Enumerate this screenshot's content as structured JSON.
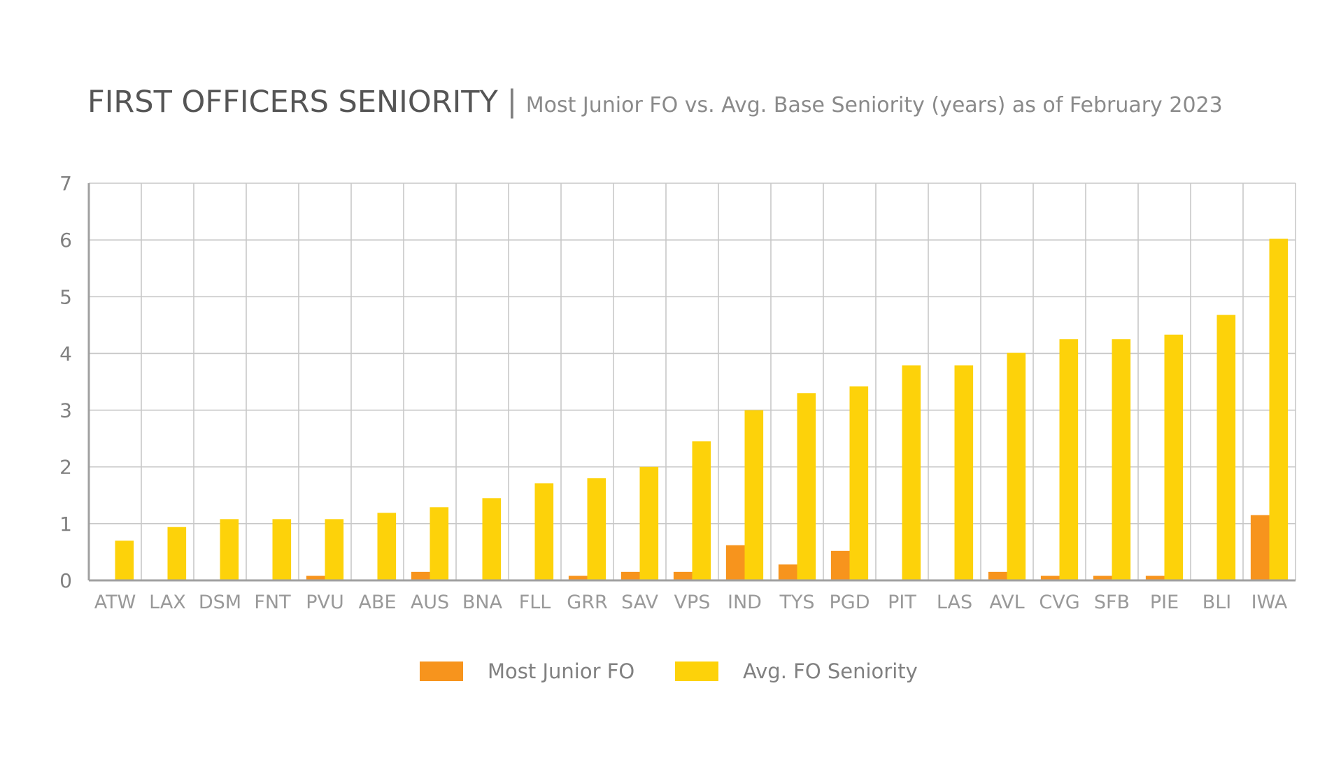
{
  "chart_data": {
    "type": "bar",
    "title": "FIRST OFFICERS SENIORITY",
    "title_separator": "|",
    "subtitle": "Most Junior FO vs. Avg. Base Seniority (years) as of February 2023",
    "xlabel": "",
    "ylabel": "",
    "ylim": [
      0,
      7
    ],
    "yticks": [
      0,
      1,
      2,
      3,
      4,
      5,
      6,
      7
    ],
    "grid": true,
    "legend_position": "bottom-center",
    "categories": [
      "ATW",
      "LAX",
      "DSM",
      "FNT",
      "PVU",
      "ABE",
      "AUS",
      "BNA",
      "FLL",
      "GRR",
      "SAV",
      "VPS",
      "IND",
      "TYS",
      "PGD",
      "PIT",
      "LAS",
      "AVL",
      "CVG",
      "SFB",
      "PIE",
      "BLI",
      "IWA"
    ],
    "series": [
      {
        "name": "Most Junior FO",
        "color": "#F7941D",
        "values": [
          0,
          0,
          0,
          0,
          0.08,
          0,
          0.15,
          0,
          0,
          0.08,
          0.15,
          0.15,
          0.62,
          0.28,
          0.52,
          0,
          0,
          0.15,
          0.08,
          0.08,
          0.08,
          0,
          1.15
        ]
      },
      {
        "name": "Avg. FO Seniority",
        "color": "#FDD20A",
        "values": [
          0.7,
          0.94,
          1.08,
          1.08,
          1.08,
          1.19,
          1.29,
          1.45,
          1.71,
          1.8,
          2.0,
          2.45,
          3.0,
          3.3,
          3.42,
          3.79,
          3.79,
          4.01,
          4.25,
          4.25,
          4.33,
          4.68,
          6.02
        ]
      }
    ],
    "colors": {
      "grid": "#c8c8c8",
      "axis": "#a0a0a0",
      "title": "#555555",
      "subtitle": "#8a8a8a",
      "tick_labels": "#999999"
    }
  }
}
